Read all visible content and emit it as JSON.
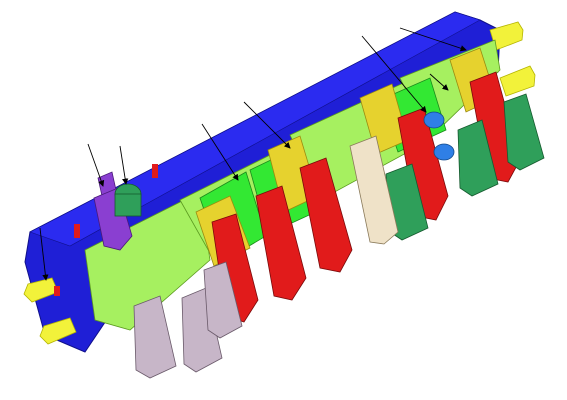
{
  "figure": {
    "kind": "isometric-cad-assembly",
    "callout_count": 8,
    "colors": {
      "manifold_blue": "#1f1fd6",
      "base_light_green": "#a6f060",
      "bright_green": "#33e833",
      "yellow": "#e6d22e",
      "red": "#e11b1b",
      "dark_green": "#2f9f5a",
      "lilac": "#c7b6c8",
      "beige": "#efe2c8",
      "purple": "#8a3fd1",
      "port_yellow": "#f2f23a",
      "light_blue": "#2f7fe6"
    }
  }
}
